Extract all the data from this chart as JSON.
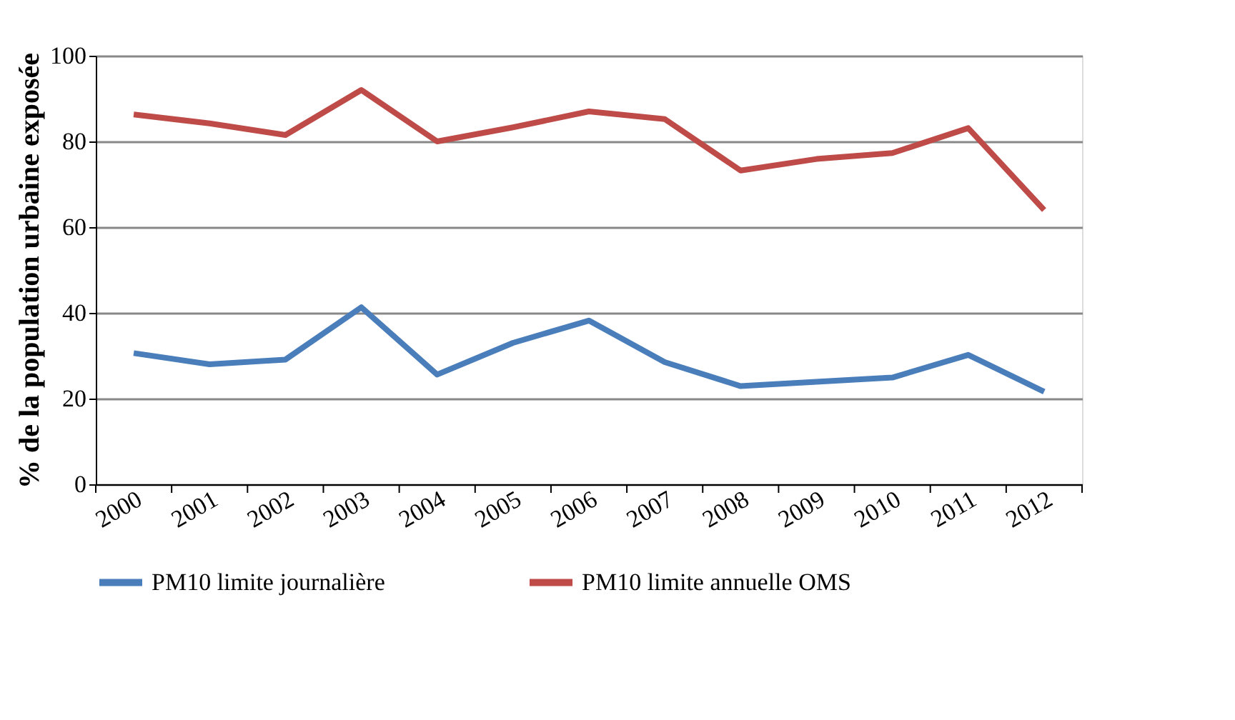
{
  "chart_data": {
    "type": "line",
    "ylabel": "% de la population urbaine exposée",
    "categories": [
      "2000",
      "2001",
      "2002",
      "2003",
      "2004",
      "2005",
      "2006",
      "2007",
      "2008",
      "2009",
      "2010",
      "2011",
      "2012"
    ],
    "series": [
      {
        "name": "PM10 limite journalière",
        "color": "#4a7ebb",
        "values": [
          30.6,
          28,
          29.1,
          41.3,
          25.6,
          33,
          38.2,
          28.5,
          22.9,
          23.9,
          24.9,
          30.2,
          21.6
        ]
      },
      {
        "name": "PM10 limite annuelle OMS",
        "color": "#be4b48",
        "values": [
          86.3,
          84.2,
          81.5,
          92,
          80,
          83.3,
          87,
          85.2,
          73.2,
          75.9,
          77.3,
          83.1,
          64
        ]
      }
    ],
    "ylim": [
      0,
      100
    ],
    "yticks": [
      0,
      20,
      40,
      60,
      80,
      100
    ],
    "grid": "y",
    "legend": "bottom",
    "marker": "none",
    "line_style": "solid"
  }
}
